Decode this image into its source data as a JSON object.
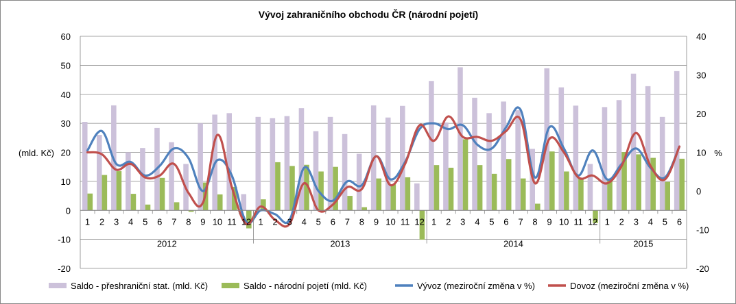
{
  "chart_data": {
    "type": "bar",
    "title": "Vývoj zahraničního obchodu ČR (národní pojetí)",
    "ylabel_left": "(mld. Kč)",
    "ylabel_right": "%",
    "ylim_left": [
      -20,
      60
    ],
    "yticks_left": [
      "-20",
      "-10",
      "0",
      "10",
      "20",
      "30",
      "40",
      "50",
      "60"
    ],
    "ylim_right": [
      -20,
      40
    ],
    "yticks_right": [
      "-20",
      "-10",
      "0",
      "10",
      "20",
      "30",
      "40"
    ],
    "month_labels": [
      "1",
      "2",
      "3",
      "4",
      "5",
      "6",
      "7",
      "8",
      "9",
      "10",
      "11",
      "12",
      "1",
      "2",
      "3",
      "4",
      "5",
      "6",
      "7",
      "8",
      "9",
      "10",
      "11",
      "12",
      "1",
      "2",
      "3",
      "4",
      "5",
      "6",
      "7",
      "8",
      "9",
      "10",
      "11",
      "12",
      "1",
      "2",
      "3",
      "4",
      "5",
      "6"
    ],
    "years": [
      {
        "label": "2012",
        "months": 12
      },
      {
        "label": "2013",
        "months": 12
      },
      {
        "label": "2014",
        "months": 12
      },
      {
        "label": "2015",
        "months": 6
      }
    ],
    "grid": true,
    "legend_position": "bottom",
    "series": [
      {
        "name": "Saldo - přeshraniční stat. (mld. Kč)",
        "kind": "bar",
        "axis": "left",
        "color": "#ccc1da",
        "values": [
          30.5,
          26,
          36.2,
          20,
          21.5,
          28.4,
          23.5,
          16,
          30,
          33,
          33.5,
          5.6,
          32.2,
          31.8,
          32.5,
          35.2,
          27.3,
          32.2,
          26.3,
          19.5,
          36.2,
          32,
          36,
          9.3,
          44.6,
          30.3,
          49.3,
          38.8,
          33.5,
          37.5,
          34.5,
          21.2,
          49,
          42.4,
          36.1,
          16,
          35.6,
          38,
          47.1,
          42.8,
          32.2,
          48
        ]
      },
      {
        "name": "Saldo - národní pojetí (mld. Kč)",
        "kind": "bar",
        "axis": "left",
        "color": "#9bbb59",
        "values": [
          5.8,
          12.2,
          13.5,
          5.7,
          2,
          11.2,
          2.8,
          -0.5,
          9.6,
          5.5,
          8.1,
          -6.2,
          3.8,
          16.6,
          15.3,
          15.7,
          13.4,
          15,
          5,
          1.1,
          11,
          9,
          11.4,
          -10.1,
          15.6,
          14.7,
          24.5,
          15.6,
          12.6,
          17.7,
          11,
          2.3,
          20.3,
          13.4,
          11,
          -4.4,
          10.3,
          20.1,
          19.3,
          18.1,
          9.8,
          17.8
        ]
      },
      {
        "name": "Vývoz (meziroční změna v %)",
        "kind": "line",
        "axis": "right",
        "color": "#4f81bd",
        "values": [
          10.5,
          15.5,
          7,
          7.5,
          4,
          6.5,
          11,
          8.5,
          0,
          8,
          4,
          -8,
          -5,
          -6,
          -7.5,
          6,
          0,
          -2.5,
          2.5,
          1.5,
          9,
          3,
          7.5,
          16,
          17.5,
          16,
          17,
          12,
          11,
          16.5,
          21,
          3.5,
          16.5,
          11,
          4,
          10.5,
          3,
          7,
          11,
          6,
          3.5,
          11.5
        ]
      },
      {
        "name": "Dovoz (meziroční změna v %)",
        "kind": "line",
        "axis": "right",
        "color": "#c0504d",
        "values": [
          10,
          9.5,
          5.5,
          7,
          3.5,
          4,
          7,
          -0.5,
          -3,
          14.5,
          1,
          -8.5,
          -4,
          -7.5,
          -8.5,
          2,
          -5,
          -3.5,
          1,
          0.5,
          9,
          1.5,
          7,
          17,
          13,
          19.3,
          14,
          14,
          13,
          15.5,
          18.5,
          2,
          13.5,
          10,
          3.5,
          4,
          2,
          6.5,
          15,
          6.5,
          3,
          11.5
        ]
      }
    ]
  }
}
